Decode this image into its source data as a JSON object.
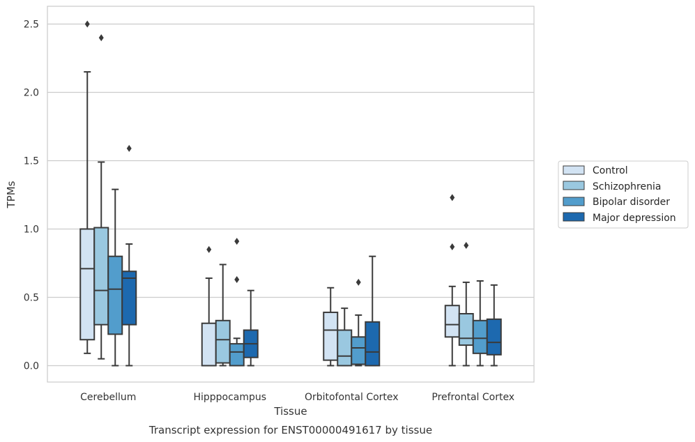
{
  "chart_data": {
    "type": "box",
    "xlabel": "Tissue",
    "ylabel": "TPMs",
    "caption": "Transcript expression for ENST00000491617 by tissue",
    "ylim": [
      -0.12,
      2.63
    ],
    "yticks": [
      0.0,
      0.5,
      1.0,
      1.5,
      2.0,
      2.5
    ],
    "ytick_labels": [
      "0.0",
      "0.5",
      "1.0",
      "1.5",
      "2.0",
      "2.5"
    ],
    "categories": [
      "Cerebellum",
      "Hipppocampus",
      "Orbitofontal Cortex",
      "Prefrontal Cortex"
    ],
    "grid": "horizontal",
    "legend_position": "right",
    "series": [
      {
        "name": "Control",
        "color": "#d2e3f3",
        "boxes": [
          {
            "whisker_low": 0.09,
            "q1": 0.19,
            "median": 0.71,
            "q3": 1.0,
            "whisker_high": 2.15,
            "outliers": [
              2.5
            ]
          },
          {
            "whisker_low": 0.0,
            "q1": 0.0,
            "median": 0.0,
            "q3": 0.31,
            "whisker_high": 0.64,
            "outliers": [
              0.85
            ]
          },
          {
            "whisker_low": 0.0,
            "q1": 0.04,
            "median": 0.26,
            "q3": 0.39,
            "whisker_high": 0.57,
            "outliers": []
          },
          {
            "whisker_low": 0.0,
            "q1": 0.21,
            "median": 0.3,
            "q3": 0.44,
            "whisker_high": 0.58,
            "outliers": [
              0.87,
              1.23
            ]
          }
        ]
      },
      {
        "name": "Schizophrenia",
        "color": "#9ac8e0",
        "boxes": [
          {
            "whisker_low": 0.05,
            "q1": 0.3,
            "median": 0.55,
            "q3": 1.01,
            "whisker_high": 1.49,
            "outliers": [
              2.4
            ]
          },
          {
            "whisker_low": 0.0,
            "q1": 0.02,
            "median": 0.19,
            "q3": 0.33,
            "whisker_high": 0.74,
            "outliers": []
          },
          {
            "whisker_low": 0.0,
            "q1": 0.0,
            "median": 0.07,
            "q3": 0.26,
            "whisker_high": 0.42,
            "outliers": []
          },
          {
            "whisker_low": 0.0,
            "q1": 0.15,
            "median": 0.2,
            "q3": 0.38,
            "whisker_high": 0.61,
            "outliers": [
              0.88
            ]
          }
        ]
      },
      {
        "name": "Bipolar disorder",
        "color": "#529dcc",
        "boxes": [
          {
            "whisker_low": 0.0,
            "q1": 0.23,
            "median": 0.56,
            "q3": 0.8,
            "whisker_high": 1.29,
            "outliers": []
          },
          {
            "whisker_low": 0.0,
            "q1": 0.0,
            "median": 0.1,
            "q3": 0.16,
            "whisker_high": 0.2,
            "outliers": [
              0.63,
              0.91
            ]
          },
          {
            "whisker_low": 0.0,
            "q1": 0.01,
            "median": 0.13,
            "q3": 0.21,
            "whisker_high": 0.37,
            "outliers": [
              0.61
            ]
          },
          {
            "whisker_low": 0.0,
            "q1": 0.09,
            "median": 0.2,
            "q3": 0.33,
            "whisker_high": 0.62,
            "outliers": []
          }
        ]
      },
      {
        "name": "Major depression",
        "color": "#1d69af",
        "boxes": [
          {
            "whisker_low": 0.0,
            "q1": 0.3,
            "median": 0.64,
            "q3": 0.69,
            "whisker_high": 0.89,
            "outliers": [
              1.59
            ]
          },
          {
            "whisker_low": 0.0,
            "q1": 0.06,
            "median": 0.16,
            "q3": 0.26,
            "whisker_high": 0.55,
            "outliers": []
          },
          {
            "whisker_low": 0.0,
            "q1": 0.0,
            "median": 0.1,
            "q3": 0.32,
            "whisker_high": 0.8,
            "outliers": []
          },
          {
            "whisker_low": 0.0,
            "q1": 0.08,
            "median": 0.17,
            "q3": 0.34,
            "whisker_high": 0.59,
            "outliers": []
          }
        ]
      }
    ]
  }
}
